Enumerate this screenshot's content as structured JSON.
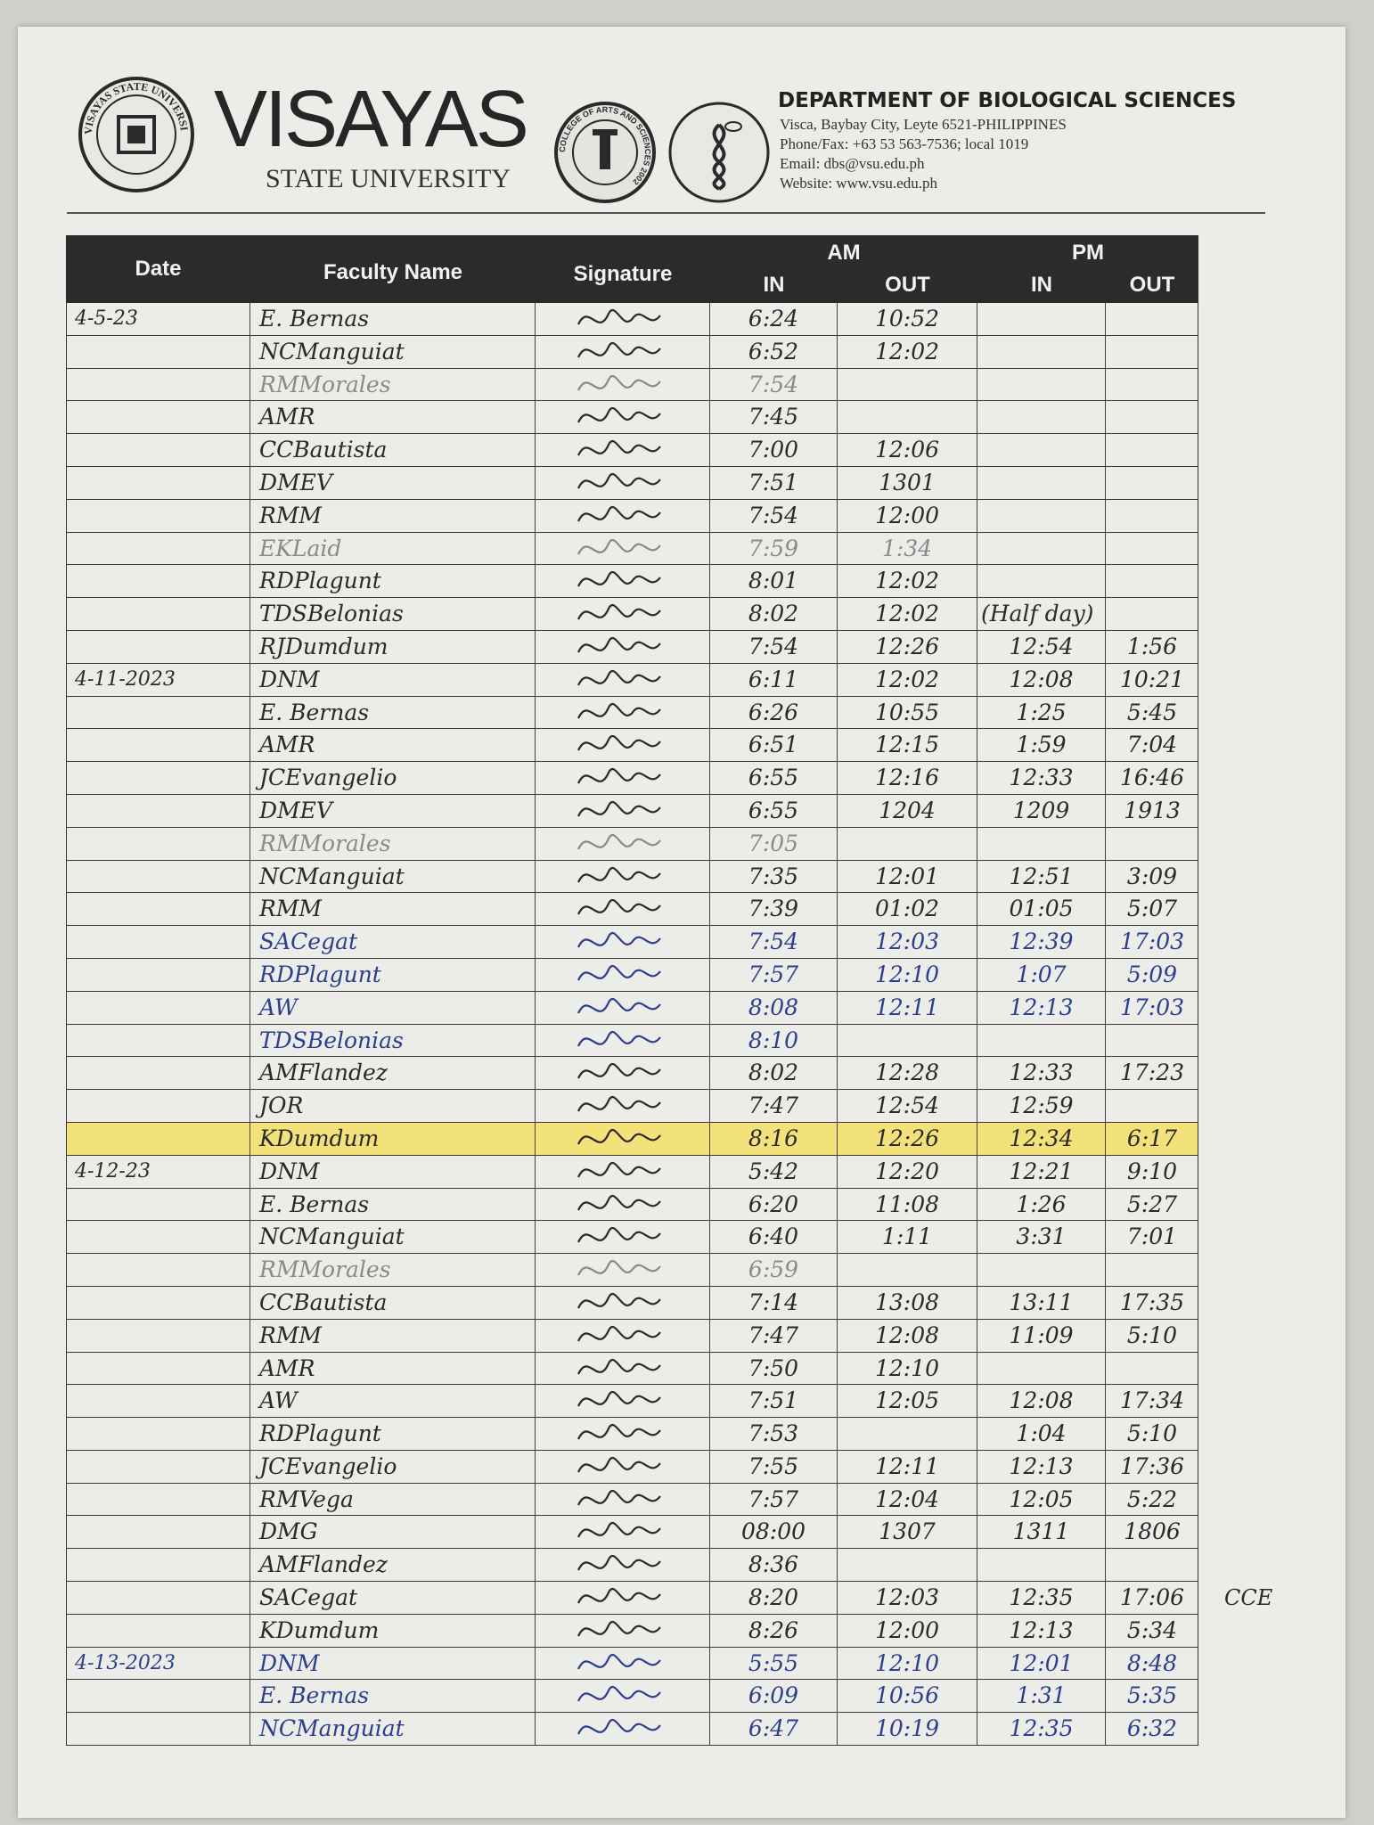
{
  "header": {
    "university_seal_text": "VISAYAS STATE UNIVERSITY",
    "brand_name": "VISAYAS",
    "brand_sub": "STATE UNIVERSITY",
    "college_seal_text": "COLLEGE OF ARTS AND SCIENCES 2002",
    "department": "DEPARTMENT OF BIOLOGICAL SCIENCES",
    "address": "Visca, Baybay City, Leyte 6521-PHILIPPINES",
    "phone": "Phone/Fax: +63 53  563-7536; local 1019",
    "email": "Email: dbs@vsu.edu.ph",
    "website": "Website: www.vsu.edu.ph"
  },
  "table": {
    "columns": {
      "date": "Date",
      "name": "Faculty Name",
      "signature": "Signature",
      "am": "AM",
      "pm": "PM",
      "in": "IN",
      "out": "OUT"
    },
    "ink_colors": {
      "black": "#2a2a2a",
      "blue": "#2c3f8f",
      "faint": "#8a8a8a"
    },
    "highlight_color": "#f3e27a",
    "rows": [
      {
        "date": "4-5-23",
        "name": "E. Bernas",
        "am_in": "6:24",
        "am_out": "10:52",
        "pm_in": "",
        "pm_out": "",
        "ink": "black"
      },
      {
        "date": "",
        "name": "NCManguiat",
        "am_in": "6:52",
        "am_out": "12:02",
        "pm_in": "",
        "pm_out": "",
        "ink": "black"
      },
      {
        "date": "",
        "name": "RMMorales",
        "am_in": "7:54",
        "am_out": "",
        "pm_in": "",
        "pm_out": "",
        "ink": "faint"
      },
      {
        "date": "",
        "name": "AMR",
        "am_in": "7:45",
        "am_out": "",
        "pm_in": "",
        "pm_out": "",
        "ink": "black"
      },
      {
        "date": "",
        "name": "CCBautista",
        "am_in": "7:00",
        "am_out": "12:06",
        "pm_in": "",
        "pm_out": "",
        "ink": "black"
      },
      {
        "date": "",
        "name": "DMEV",
        "am_in": "7:51",
        "am_out": "1301",
        "pm_in": "",
        "pm_out": "",
        "ink": "black"
      },
      {
        "date": "",
        "name": "RMM",
        "am_in": "7:54",
        "am_out": "12:00",
        "pm_in": "",
        "pm_out": "",
        "ink": "black"
      },
      {
        "date": "",
        "name": "EKLaid",
        "am_in": "7:59",
        "am_out": "1:34",
        "pm_in": "",
        "pm_out": "",
        "ink": "faint"
      },
      {
        "date": "",
        "name": "RDPlagunt",
        "am_in": "8:01",
        "am_out": "12:02",
        "pm_in": "",
        "pm_out": "",
        "ink": "black"
      },
      {
        "date": "",
        "name": "TDSBelonias",
        "am_in": "8:02",
        "am_out": "12:02",
        "pm_in": "(Half day)",
        "pm_out": "",
        "ink": "black"
      },
      {
        "date": "",
        "name": "RJDumdum",
        "am_in": "7:54",
        "am_out": "12:26",
        "pm_in": "12:54",
        "pm_out": "1:56",
        "ink": "black"
      },
      {
        "date": "4-11-2023",
        "name": "DNM",
        "am_in": "6:11",
        "am_out": "12:02",
        "pm_in": "12:08",
        "pm_out": "10:21",
        "ink": "black"
      },
      {
        "date": "",
        "name": "E. Bernas",
        "am_in": "6:26",
        "am_out": "10:55",
        "pm_in": "1:25",
        "pm_out": "5:45",
        "ink": "black"
      },
      {
        "date": "",
        "name": "AMR",
        "am_in": "6:51",
        "am_out": "12:15",
        "pm_in": "1:59",
        "pm_out": "7:04",
        "ink": "black"
      },
      {
        "date": "",
        "name": "JCEvangelio",
        "am_in": "6:55",
        "am_out": "12:16",
        "pm_in": "12:33",
        "pm_out": "16:46",
        "ink": "black"
      },
      {
        "date": "",
        "name": "DMEV",
        "am_in": "6:55",
        "am_out": "1204",
        "pm_in": "1209",
        "pm_out": "1913",
        "ink": "black"
      },
      {
        "date": "",
        "name": "RMMorales",
        "am_in": "7:05",
        "am_out": "",
        "pm_in": "",
        "pm_out": "",
        "ink": "faint"
      },
      {
        "date": "",
        "name": "NCManguiat",
        "am_in": "7:35",
        "am_out": "12:01",
        "pm_in": "12:51",
        "pm_out": "3:09",
        "ink": "black"
      },
      {
        "date": "",
        "name": "RMM",
        "am_in": "7:39",
        "am_out": "01:02",
        "pm_in": "01:05",
        "pm_out": "5:07",
        "ink": "black"
      },
      {
        "date": "",
        "name": "SACegat",
        "am_in": "7:54",
        "am_out": "12:03",
        "pm_in": "12:39",
        "pm_out": "17:03",
        "ink": "blue"
      },
      {
        "date": "",
        "name": "RDPlagunt",
        "am_in": "7:57",
        "am_out": "12:10",
        "pm_in": "1:07",
        "pm_out": "5:09",
        "ink": "blue"
      },
      {
        "date": "",
        "name": "AW",
        "am_in": "8:08",
        "am_out": "12:11",
        "pm_in": "12:13",
        "pm_out": "17:03",
        "ink": "blue"
      },
      {
        "date": "",
        "name": "TDSBelonias",
        "am_in": "8:10",
        "am_out": "",
        "pm_in": "",
        "pm_out": "",
        "ink": "blue"
      },
      {
        "date": "",
        "name": "AMFlandez",
        "am_in": "8:02",
        "am_out": "12:28",
        "pm_in": "12:33",
        "pm_out": "17:23",
        "ink": "black"
      },
      {
        "date": "",
        "name": "JOR",
        "am_in": "7:47",
        "am_out": "12:54",
        "pm_in": "12:59",
        "pm_out": "",
        "ink": "black"
      },
      {
        "date": "",
        "name": "KDumdum",
        "am_in": "8:16",
        "am_out": "12:26",
        "pm_in": "12:34",
        "pm_out": "6:17",
        "ink": "black",
        "highlight": true
      },
      {
        "date": "4-12-23",
        "name": "DNM",
        "am_in": "5:42",
        "am_out": "12:20",
        "pm_in": "12:21",
        "pm_out": "9:10",
        "ink": "black"
      },
      {
        "date": "",
        "name": "E. Bernas",
        "am_in": "6:20",
        "am_out": "11:08",
        "pm_in": "1:26",
        "pm_out": "5:27",
        "ink": "black"
      },
      {
        "date": "",
        "name": "NCManguiat",
        "am_in": "6:40",
        "am_out": "1:11",
        "pm_in": "3:31",
        "pm_out": "7:01",
        "ink": "black"
      },
      {
        "date": "",
        "name": "RMMorales",
        "am_in": "6:59",
        "am_out": "",
        "pm_in": "",
        "pm_out": "",
        "ink": "faint"
      },
      {
        "date": "",
        "name": "CCBautista",
        "am_in": "7:14",
        "am_out": "13:08",
        "pm_in": "13:11",
        "pm_out": "17:35",
        "ink": "black"
      },
      {
        "date": "",
        "name": "RMM",
        "am_in": "7:47",
        "am_out": "12:08",
        "pm_in": "11:09",
        "pm_out": "5:10",
        "ink": "black"
      },
      {
        "date": "",
        "name": "AMR",
        "am_in": "7:50",
        "am_out": "12:10",
        "pm_in": "",
        "pm_out": "",
        "ink": "black"
      },
      {
        "date": "",
        "name": "AW",
        "am_in": "7:51",
        "am_out": "12:05",
        "pm_in": "12:08",
        "pm_out": "17:34",
        "ink": "black"
      },
      {
        "date": "",
        "name": "RDPlagunt",
        "am_in": "7:53",
        "am_out": "",
        "pm_in": "1:04",
        "pm_out": "5:10",
        "ink": "black"
      },
      {
        "date": "",
        "name": "JCEvangelio",
        "am_in": "7:55",
        "am_out": "12:11",
        "pm_in": "12:13",
        "pm_out": "17:36",
        "ink": "black"
      },
      {
        "date": "",
        "name": "RMVega",
        "am_in": "7:57",
        "am_out": "12:04",
        "pm_in": "12:05",
        "pm_out": "5:22",
        "ink": "black"
      },
      {
        "date": "",
        "name": "DMG",
        "am_in": "08:00",
        "am_out": "1307",
        "pm_in": "1311",
        "pm_out": "1806",
        "ink": "black"
      },
      {
        "date": "",
        "name": "AMFlandez",
        "am_in": "8:36",
        "am_out": "",
        "pm_in": "",
        "pm_out": "",
        "ink": "black"
      },
      {
        "date": "",
        "name": "SACegat",
        "am_in": "8:20",
        "am_out": "12:03",
        "pm_in": "12:35",
        "pm_out": "17:06",
        "ink": "black",
        "note": "CCE"
      },
      {
        "date": "",
        "name": "KDumdum",
        "am_in": "8:26",
        "am_out": "12:00",
        "pm_in": "12:13",
        "pm_out": "5:34",
        "ink": "black"
      },
      {
        "date": "4-13-2023",
        "name": "DNM",
        "am_in": "5:55",
        "am_out": "12:10",
        "pm_in": "12:01",
        "pm_out": "8:48",
        "ink": "blue"
      },
      {
        "date": "",
        "name": "E. Bernas",
        "am_in": "6:09",
        "am_out": "10:56",
        "pm_in": "1:31",
        "pm_out": "5:35",
        "ink": "blue"
      },
      {
        "date": "",
        "name": "NCManguiat",
        "am_in": "6:47",
        "am_out": "10:19",
        "pm_in": "12:35",
        "pm_out": "6:32",
        "ink": "blue"
      }
    ]
  }
}
